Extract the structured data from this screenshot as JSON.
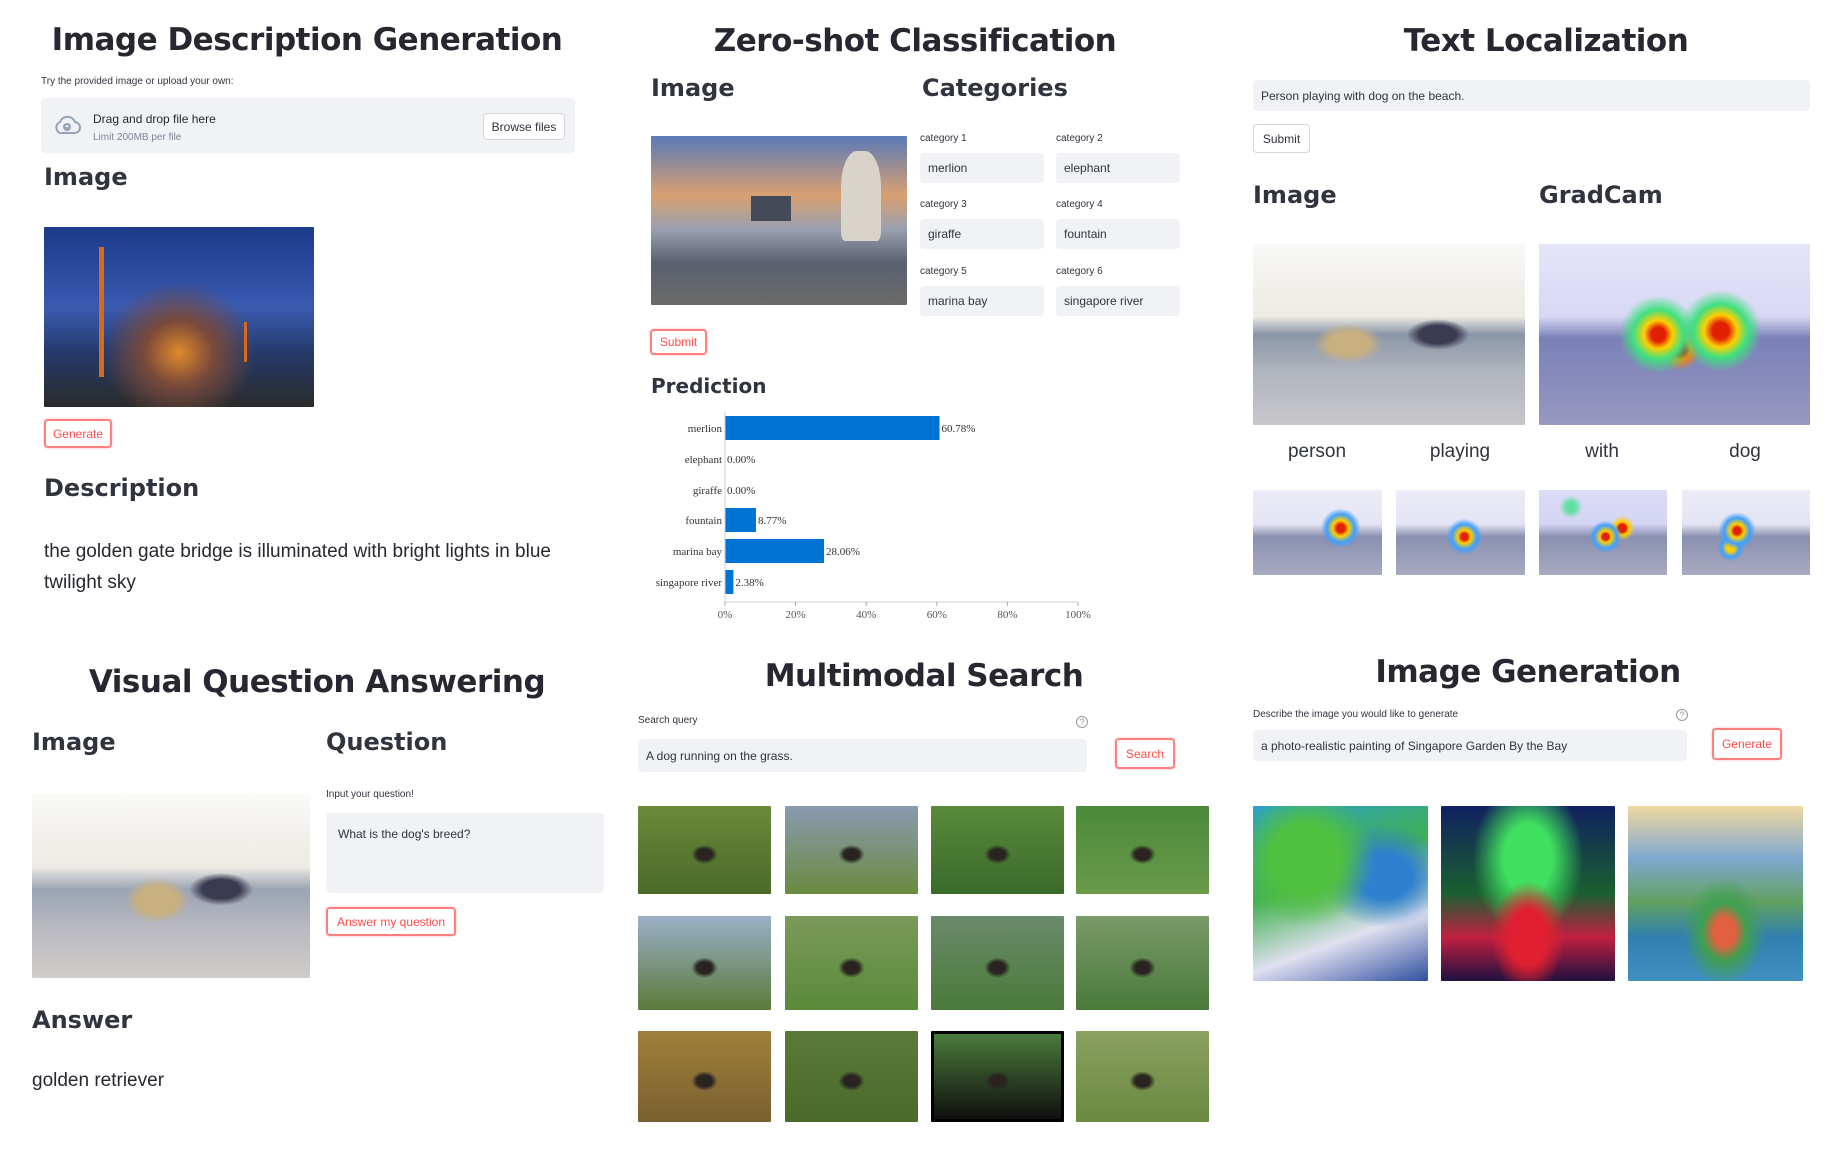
{
  "desc": {
    "title": "Image Description Generation",
    "try_label": "Try the provided image or upload your own:",
    "uploader": {
      "main": "Drag and drop file here",
      "limit": "Limit 200MB per file",
      "browse": "Browse files",
      "icon": "cloud-upload-icon"
    },
    "image_heading": "Image",
    "generate": "Generate",
    "description_heading": "Description",
    "description_text": "the golden gate bridge is illuminated with bright lights in blue twilight sky"
  },
  "zeroshot": {
    "title": "Zero-shot Classification",
    "image_heading": "Image",
    "categories_heading": "Categories",
    "categories": [
      {
        "label": "category 1",
        "value": "merlion"
      },
      {
        "label": "category 2",
        "value": "elephant"
      },
      {
        "label": "category 3",
        "value": "giraffe"
      },
      {
        "label": "category 4",
        "value": "fountain"
      },
      {
        "label": "category 5",
        "value": "marina bay"
      },
      {
        "label": "category 6",
        "value": "singapore river"
      }
    ],
    "submit": "Submit",
    "prediction_heading": "Prediction"
  },
  "chart_data": {
    "type": "bar",
    "orientation": "horizontal",
    "categories": [
      "merlion",
      "elephant",
      "giraffe",
      "fountain",
      "marina bay",
      "singapore river"
    ],
    "values": [
      60.78,
      0.0,
      0.0,
      8.77,
      28.06,
      2.38
    ],
    "data_labels": [
      "60.78%",
      "0.00%",
      "0.00%",
      "8.77%",
      "28.06%",
      "2.38%"
    ],
    "xlim": [
      0,
      100
    ],
    "x_ticks": [
      "0%",
      "20%",
      "40%",
      "60%",
      "80%",
      "100%"
    ],
    "bar_color": "#0074d4",
    "grid": false
  },
  "textloc": {
    "title": "Text Localization",
    "input_value": "Person playing with dog on the beach.",
    "submit": "Submit",
    "image_heading": "Image",
    "gradcam_heading": "GradCam",
    "words": [
      "person",
      "playing",
      "with",
      "dog"
    ]
  },
  "vqa": {
    "title": "Visual Question Answering",
    "image_heading": "Image",
    "question_heading": "Question",
    "input_label": "Input your question!",
    "question_value": "What is the dog's breed?",
    "answer_button": "Answer my question",
    "answer_heading": "Answer",
    "answer_text": "golden retriever"
  },
  "search": {
    "title": "Multimodal Search",
    "query_label": "Search query",
    "query_value": "A dog running on the grass.",
    "search_button": "Search",
    "help_icon": "question-circle-icon"
  },
  "imggen": {
    "title": "Image Generation",
    "prompt_label": "Describe the image you would like to generate",
    "prompt_value": "a photo-realistic painting of Singapore Garden By the Bay",
    "generate": "Generate",
    "help_icon": "question-circle-icon"
  },
  "colors": {
    "accent_red": "#ff4b4b",
    "input_bg": "#f0f2f6",
    "bar": "#0074d4",
    "text": "#262730"
  }
}
